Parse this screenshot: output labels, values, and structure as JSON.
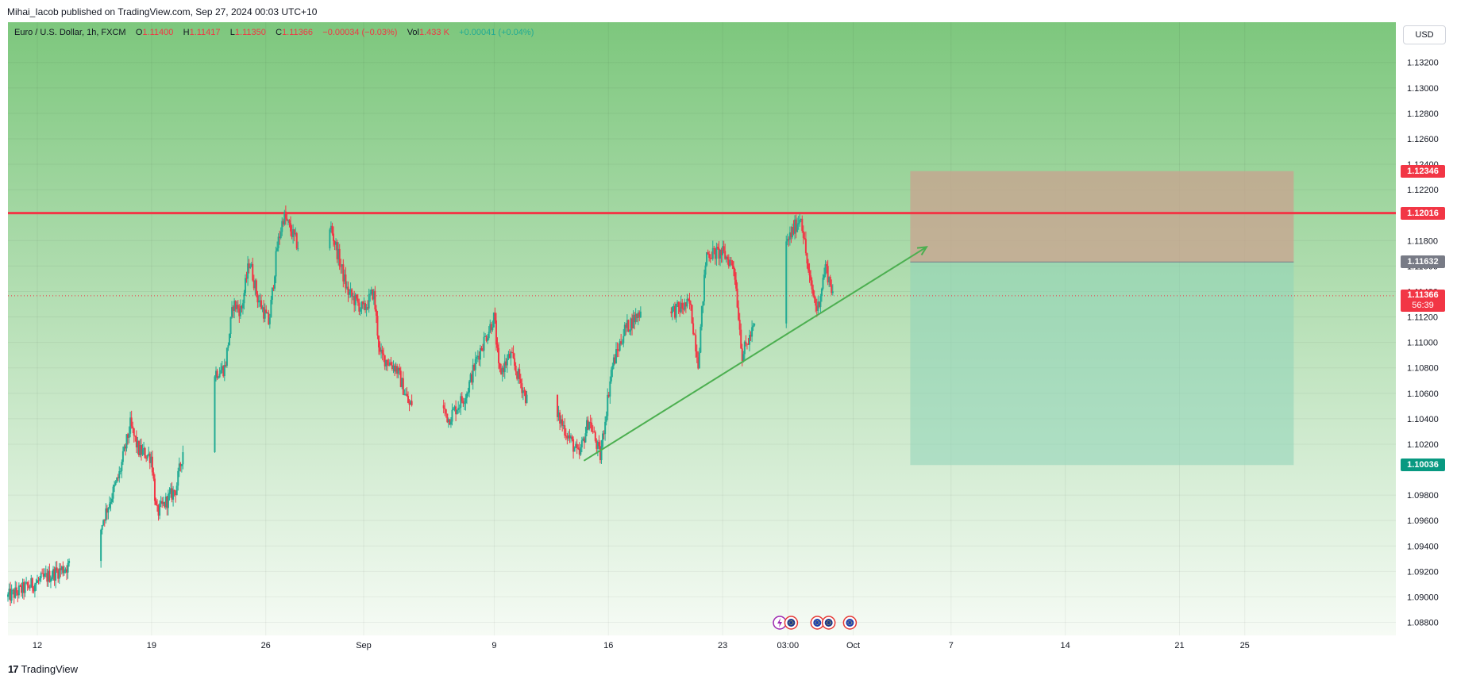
{
  "header": {
    "published_text": "Mihai_Iacob published on TradingView.com, Sep 27, 2024 00:03 UTC+10"
  },
  "legend": {
    "symbol": "Euro / U.S. Dollar, 1h, FXCM",
    "o_label": "O",
    "o_value": "1.11400",
    "h_label": "H",
    "h_value": "1.11417",
    "l_label": "L",
    "l_value": "1.11350",
    "c_label": "C",
    "c_value": "1.11366",
    "change": "−0.00034 (−0.03%)",
    "vol_label": "Vol",
    "vol_value": "1.433 K",
    "vol_change": "+0.00041 (+0.04%)"
  },
  "currency_button": "USD",
  "footer": {
    "brand": "TradingView",
    "logo": "17"
  },
  "colors": {
    "up": "#22ab94",
    "down": "#f23645",
    "background_top": "#7dc77d",
    "background_bottom": "#f6fbf5",
    "resistance_line": "#f23645",
    "trendline": "#4caf50",
    "risk_zone": "#c9a28f",
    "reward_zone": "#8fd3b8"
  },
  "chart_data": {
    "type": "candlestick",
    "symbol": "EURUSD",
    "timeframe": "1h",
    "y_axis": {
      "ylim": [
        1.087,
        1.134
      ],
      "ticks": [
        "1.13200",
        "1.13000",
        "1.12800",
        "1.12600",
        "1.12400",
        "1.12200",
        "1.11800",
        "1.11600",
        "1.11400",
        "1.11200",
        "1.11000",
        "1.10800",
        "1.10600",
        "1.10400",
        "1.10200",
        "1.09800",
        "1.09600",
        "1.09400",
        "1.09200",
        "1.09000",
        "1.08800"
      ],
      "tick_values": [
        1.132,
        1.13,
        1.128,
        1.126,
        1.124,
        1.122,
        1.118,
        1.116,
        1.114,
        1.112,
        1.11,
        1.108,
        1.106,
        1.104,
        1.102,
        1.098,
        1.096,
        1.094,
        1.092,
        1.09,
        1.088
      ],
      "position": "right"
    },
    "x_axis": {
      "ticks": [
        {
          "label": "12",
          "day": 0
        },
        {
          "label": "19",
          "day": 7
        },
        {
          "label": "26",
          "day": 14
        },
        {
          "label": "Sep",
          "day": 20
        },
        {
          "label": "9",
          "day": 28
        },
        {
          "label": "16",
          "day": 35
        },
        {
          "label": "23",
          "day": 42
        },
        {
          "label": "03:00",
          "day": 46
        },
        {
          "label": "Oct",
          "day": 50
        },
        {
          "label": "7",
          "day": 56
        },
        {
          "label": "14",
          "day": 63
        },
        {
          "label": "21",
          "day": 70
        },
        {
          "label": "25",
          "day": 74
        }
      ],
      "day_range": [
        -1.8,
        84
      ]
    },
    "grid": true,
    "price_path": [
      {
        "day": -1.8,
        "price": 1.09
      },
      {
        "day": 0.5,
        "price": 1.0915
      },
      {
        "day": 2.0,
        "price": 1.0925
      },
      {
        "day": 3.5,
        "price": 1.0925
      },
      {
        "day": 4.0,
        "price": 1.096
      },
      {
        "day": 5.0,
        "price": 1.0995
      },
      {
        "day": 5.7,
        "price": 1.1035
      },
      {
        "day": 6.2,
        "price": 1.1015
      },
      {
        "day": 7.0,
        "price": 1.101
      },
      {
        "day": 7.3,
        "price": 1.0965
      },
      {
        "day": 8.5,
        "price": 1.0985
      },
      {
        "day": 9.0,
        "price": 1.102
      },
      {
        "day": 10.0,
        "price": 1.1045
      },
      {
        "day": 10.7,
        "price": 1.1075
      },
      {
        "day": 11.5,
        "price": 1.108
      },
      {
        "day": 12.0,
        "price": 1.113
      },
      {
        "day": 12.5,
        "price": 1.1125
      },
      {
        "day": 13.0,
        "price": 1.1165
      },
      {
        "day": 13.5,
        "price": 1.1135
      },
      {
        "day": 14.2,
        "price": 1.1115
      },
      {
        "day": 14.7,
        "price": 1.1175
      },
      {
        "day": 15.1,
        "price": 1.12
      },
      {
        "day": 16.0,
        "price": 1.1175
      },
      {
        "day": 17.5,
        "price": 1.1165
      },
      {
        "day": 18.0,
        "price": 1.119
      },
      {
        "day": 19.0,
        "price": 1.114
      },
      {
        "day": 20.0,
        "price": 1.1125
      },
      {
        "day": 20.6,
        "price": 1.114
      },
      {
        "day": 21.0,
        "price": 1.109
      },
      {
        "day": 22.0,
        "price": 1.108
      },
      {
        "day": 22.8,
        "price": 1.105
      },
      {
        "day": 24.0,
        "price": 1.107
      },
      {
        "day": 25.2,
        "price": 1.104
      },
      {
        "day": 26.3,
        "price": 1.106
      },
      {
        "day": 27.0,
        "price": 1.109
      },
      {
        "day": 28.0,
        "price": 1.112
      },
      {
        "day": 28.3,
        "price": 1.1075
      },
      {
        "day": 29.0,
        "price": 1.109
      },
      {
        "day": 30.0,
        "price": 1.1055
      },
      {
        "day": 31.0,
        "price": 1.104
      },
      {
        "day": 32.0,
        "price": 1.104
      },
      {
        "day": 32.8,
        "price": 1.102
      },
      {
        "day": 33.2,
        "price": 1.101
      },
      {
        "day": 33.8,
        "price": 1.104
      },
      {
        "day": 34.5,
        "price": 1.101
      },
      {
        "day": 35.2,
        "price": 1.108
      },
      {
        "day": 36.0,
        "price": 1.111
      },
      {
        "day": 37.0,
        "price": 1.1125
      },
      {
        "day": 38.0,
        "price": 1.114
      },
      {
        "day": 39.0,
        "price": 1.1125
      },
      {
        "day": 40.0,
        "price": 1.113
      },
      {
        "day": 40.5,
        "price": 1.1085
      },
      {
        "day": 41.0,
        "price": 1.117
      },
      {
        "day": 42.0,
        "price": 1.117
      },
      {
        "day": 42.7,
        "price": 1.116
      },
      {
        "day": 43.2,
        "price": 1.109
      },
      {
        "day": 44.2,
        "price": 1.112
      },
      {
        "day": 45.0,
        "price": 1.115
      },
      {
        "day": 46.0,
        "price": 1.118
      },
      {
        "day": 46.8,
        "price": 1.12
      },
      {
        "day": 47.3,
        "price": 1.115
      },
      {
        "day": 47.8,
        "price": 1.1125
      },
      {
        "day": 48.3,
        "price": 1.116
      },
      {
        "day": 48.8,
        "price": 1.1137
      }
    ],
    "resistance_level": {
      "price": 1.12016
    },
    "trendline": {
      "from": {
        "day": 33.5,
        "price": 1.1007
      },
      "to": {
        "day": 54.5,
        "price": 1.1175
      }
    },
    "short_position": {
      "day_from": 53.5,
      "day_to": 77,
      "stop_price": 1.12346,
      "entry_price": 1.11632,
      "target_price": 1.10036
    },
    "price_labels": [
      {
        "text": "1.12346",
        "price": 1.12346,
        "color": "#f23645"
      },
      {
        "text": "1.12016",
        "price": 1.12016,
        "color": "#f23645"
      },
      {
        "text": "1.11632",
        "price": 1.11632,
        "color": "#787b86"
      },
      {
        "text": "1.11366",
        "price": 1.11366,
        "color": "#f23645",
        "countdown": "56:39"
      },
      {
        "text": "1.10036",
        "price": 1.10036,
        "color": "#089981"
      }
    ],
    "event_icons": [
      {
        "name": "lightning-icon",
        "day": 45.5
      },
      {
        "name": "usd-flag-icon",
        "day": 46.2
      },
      {
        "name": "eur-flag-icon",
        "day": 47.8
      },
      {
        "name": "usd-flag-icon",
        "day": 48.5
      },
      {
        "name": "eur-flag-icon",
        "day": 49.8
      }
    ]
  }
}
